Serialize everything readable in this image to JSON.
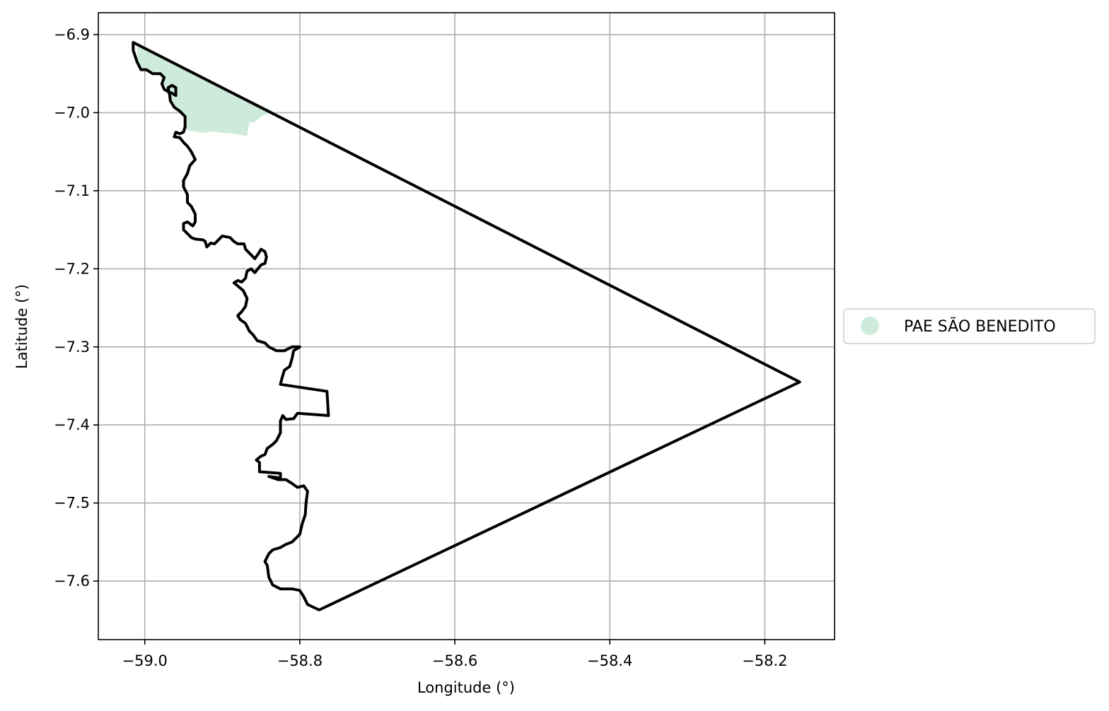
{
  "chart_data": {
    "type": "map",
    "xlabel": "Longitude (°)",
    "ylabel": "Latitude (°)",
    "xlim": [
      -59.06,
      -58.11
    ],
    "ylim": [
      -7.675,
      -6.872
    ],
    "xticks": [
      -59.0,
      -58.8,
      -58.6,
      -58.4,
      -58.2
    ],
    "xtick_labels": [
      "−59.0",
      "−58.8",
      "−58.6",
      "−58.4",
      "−58.2"
    ],
    "yticks": [
      -6.9,
      -7.0,
      -7.1,
      -7.2,
      -7.3,
      -7.4,
      -7.5,
      -7.6
    ],
    "ytick_labels": [
      "−6.9",
      "−7.0",
      "−7.1",
      "−7.2",
      "−7.3",
      "−7.4",
      "−7.5",
      "−7.6"
    ],
    "grid": true,
    "legend_placement": "right-center",
    "legend": [
      {
        "label": "PAE SÃO BENEDITO",
        "color": "#cdeadb"
      }
    ],
    "colors": {
      "outline": "#000000",
      "fill": "#cdeadb",
      "grid": "#b0b0b0"
    },
    "boundary": [
      [
        -59.015,
        -6.91
      ],
      [
        -58.155,
        -7.345
      ],
      [
        -58.775,
        -7.637
      ],
      [
        -58.79,
        -7.63
      ],
      [
        -58.795,
        -7.62
      ],
      [
        -58.8,
        -7.612
      ],
      [
        -58.81,
        -7.61
      ],
      [
        -58.825,
        -7.61
      ],
      [
        -58.835,
        -7.605
      ],
      [
        -58.84,
        -7.595
      ],
      [
        -58.842,
        -7.58
      ],
      [
        -58.845,
        -7.575
      ],
      [
        -58.84,
        -7.565
      ],
      [
        -58.835,
        -7.56
      ],
      [
        -58.825,
        -7.557
      ],
      [
        -58.818,
        -7.553
      ],
      [
        -58.81,
        -7.55
      ],
      [
        -58.805,
        -7.545
      ],
      [
        -58.8,
        -7.54
      ],
      [
        -58.797,
        -7.527
      ],
      [
        -58.793,
        -7.515
      ],
      [
        -58.792,
        -7.5
      ],
      [
        -58.79,
        -7.485
      ],
      [
        -58.795,
        -7.478
      ],
      [
        -58.803,
        -7.48
      ],
      [
        -58.81,
        -7.475
      ],
      [
        -58.818,
        -7.47
      ],
      [
        -58.828,
        -7.47
      ],
      [
        -58.84,
        -7.466
      ],
      [
        -58.825,
        -7.468
      ],
      [
        -58.825,
        -7.462
      ],
      [
        -58.852,
        -7.46
      ],
      [
        -58.852,
        -7.448
      ],
      [
        -58.856,
        -7.445
      ],
      [
        -58.85,
        -7.44
      ],
      [
        -58.845,
        -7.438
      ],
      [
        -58.842,
        -7.43
      ],
      [
        -58.835,
        -7.425
      ],
      [
        -58.83,
        -7.42
      ],
      [
        -58.825,
        -7.41
      ],
      [
        -58.825,
        -7.395
      ],
      [
        -58.822,
        -7.388
      ],
      [
        -58.818,
        -7.393
      ],
      [
        -58.808,
        -7.392
      ],
      [
        -58.803,
        -7.385
      ],
      [
        -58.763,
        -7.388
      ],
      [
        -58.765,
        -7.357
      ],
      [
        -58.825,
        -7.348
      ],
      [
        -58.823,
        -7.34
      ],
      [
        -58.82,
        -7.33
      ],
      [
        -58.813,
        -7.325
      ],
      [
        -58.81,
        -7.315
      ],
      [
        -58.808,
        -7.305
      ],
      [
        -58.8,
        -7.3
      ],
      [
        -58.81,
        -7.3
      ],
      [
        -58.82,
        -7.305
      ],
      [
        -58.83,
        -7.305
      ],
      [
        -58.84,
        -7.3
      ],
      [
        -58.845,
        -7.295
      ],
      [
        -58.855,
        -7.292
      ],
      [
        -58.86,
        -7.285
      ],
      [
        -58.865,
        -7.28
      ],
      [
        -58.87,
        -7.27
      ],
      [
        -58.877,
        -7.265
      ],
      [
        -58.88,
        -7.26
      ],
      [
        -58.875,
        -7.255
      ],
      [
        -58.87,
        -7.248
      ],
      [
        -58.868,
        -7.238
      ],
      [
        -58.873,
        -7.228
      ],
      [
        -58.88,
        -7.222
      ],
      [
        -58.885,
        -7.218
      ],
      [
        -58.88,
        -7.215
      ],
      [
        -58.875,
        -7.217
      ],
      [
        -58.87,
        -7.212
      ],
      [
        -58.868,
        -7.203
      ],
      [
        -58.863,
        -7.2
      ],
      [
        -58.858,
        -7.205
      ],
      [
        -58.85,
        -7.195
      ],
      [
        -58.845,
        -7.193
      ],
      [
        -58.843,
        -7.185
      ],
      [
        -58.845,
        -7.178
      ],
      [
        -58.85,
        -7.175
      ],
      [
        -58.853,
        -7.18
      ],
      [
        -58.858,
        -7.187
      ],
      [
        -58.865,
        -7.18
      ],
      [
        -58.87,
        -7.175
      ],
      [
        -58.872,
        -7.168
      ],
      [
        -58.88,
        -7.168
      ],
      [
        -58.885,
        -7.165
      ],
      [
        -58.89,
        -7.16
      ],
      [
        -58.9,
        -7.158
      ],
      [
        -58.905,
        -7.163
      ],
      [
        -58.91,
        -7.168
      ],
      [
        -58.915,
        -7.167
      ],
      [
        -58.92,
        -7.172
      ],
      [
        -58.922,
        -7.165
      ],
      [
        -58.925,
        -7.163
      ],
      [
        -58.935,
        -7.162
      ],
      [
        -58.94,
        -7.16
      ],
      [
        -58.945,
        -7.155
      ],
      [
        -58.95,
        -7.15
      ],
      [
        -58.95,
        -7.142
      ],
      [
        -58.945,
        -7.14
      ],
      [
        -58.938,
        -7.145
      ],
      [
        -58.935,
        -7.14
      ],
      [
        -58.935,
        -7.13
      ],
      [
        -58.94,
        -7.12
      ],
      [
        -58.945,
        -7.115
      ],
      [
        -58.945,
        -7.105
      ],
      [
        -58.95,
        -7.095
      ],
      [
        -58.95,
        -7.087
      ],
      [
        -58.945,
        -7.078
      ],
      [
        -58.942,
        -7.068
      ],
      [
        -58.935,
        -7.06
      ],
      [
        -58.94,
        -7.05
      ],
      [
        -58.945,
        -7.043
      ],
      [
        -58.95,
        -7.038
      ],
      [
        -58.955,
        -7.032
      ],
      [
        -58.962,
        -7.031
      ],
      [
        -58.96,
        -7.025
      ],
      [
        -58.955,
        -7.027
      ],
      [
        -58.95,
        -7.025
      ],
      [
        -58.948,
        -7.018
      ],
      [
        -58.948,
        -7.005
      ],
      [
        -58.955,
        -6.998
      ],
      [
        -58.962,
        -6.993
      ],
      [
        -58.967,
        -6.985
      ],
      [
        -58.968,
        -6.977
      ],
      [
        -58.97,
        -6.968
      ],
      [
        -58.965,
        -6.965
      ],
      [
        -58.96,
        -6.968
      ],
      [
        -58.96,
        -6.978
      ],
      [
        -58.965,
        -6.975
      ],
      [
        -58.97,
        -6.973
      ],
      [
        -58.975,
        -6.97
      ],
      [
        -58.978,
        -6.963
      ],
      [
        -58.975,
        -6.955
      ],
      [
        -58.98,
        -6.95
      ],
      [
        -58.99,
        -6.95
      ],
      [
        -58.998,
        -6.945
      ],
      [
        -59.005,
        -6.945
      ],
      [
        -59.01,
        -6.935
      ],
      [
        -59.015,
        -6.92
      ]
    ],
    "shaded_area": [
      [
        -59.01,
        -6.913
      ],
      [
        -58.835,
        -6.998
      ],
      [
        -58.85,
        -7.005
      ],
      [
        -58.858,
        -7.012
      ],
      [
        -58.858,
        -7.013
      ],
      [
        -58.865,
        -7.012
      ],
      [
        -58.868,
        -7.03
      ],
      [
        -58.885,
        -7.027
      ],
      [
        -58.898,
        -7.026
      ],
      [
        -58.912,
        -7.024
      ],
      [
        -58.925,
        -7.026
      ],
      [
        -58.935,
        -7.024
      ],
      [
        -58.945,
        -7.023
      ],
      [
        -58.95,
        -7.018
      ],
      [
        -58.948,
        -7.005
      ],
      [
        -58.955,
        -6.998
      ],
      [
        -58.962,
        -6.993
      ],
      [
        -58.967,
        -6.985
      ],
      [
        -58.968,
        -6.977
      ],
      [
        -58.97,
        -6.968
      ],
      [
        -58.978,
        -6.963
      ],
      [
        -58.975,
        -6.955
      ],
      [
        -58.98,
        -6.95
      ],
      [
        -58.99,
        -6.95
      ],
      [
        -58.998,
        -6.945
      ],
      [
        -59.005,
        -6.945
      ],
      [
        -59.01,
        -6.935
      ]
    ]
  }
}
